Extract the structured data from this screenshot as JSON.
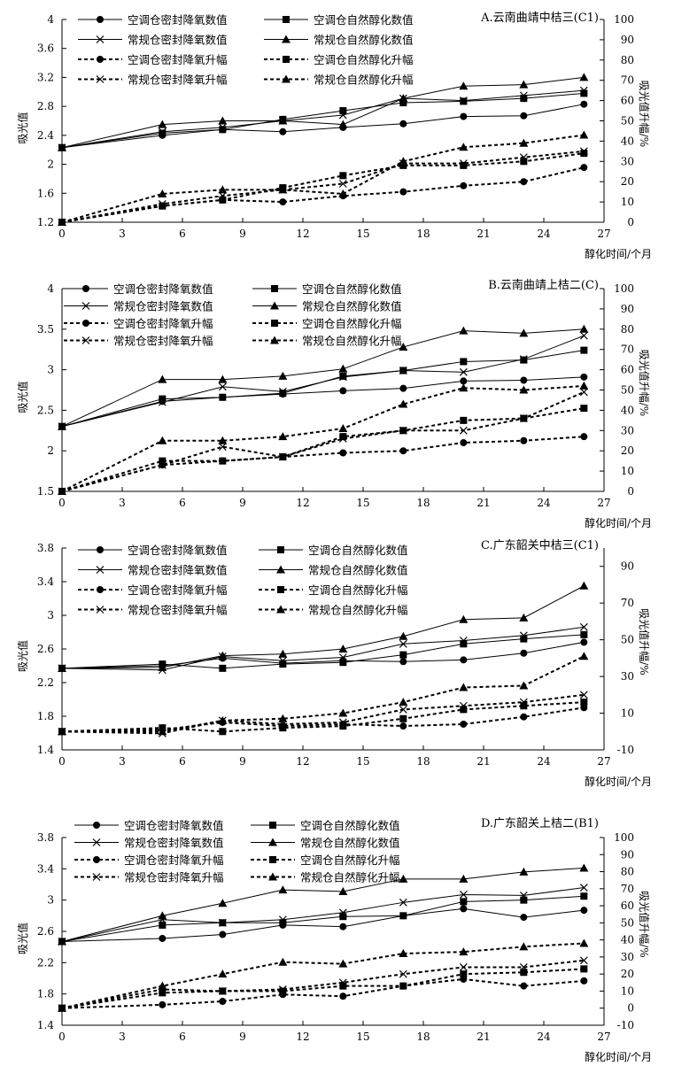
{
  "chart_data": [
    {
      "type": "line",
      "title": "A.云南曲靖中桔三(C1)",
      "xlabel": "醇化时间/个月",
      "ylabel": "吸光值",
      "y2label": "吸光值升幅/%",
      "x": [
        0,
        5,
        8,
        11,
        14,
        17,
        20,
        23,
        26
      ],
      "xticks": [
        0,
        3,
        6,
        9,
        12,
        15,
        18,
        21,
        24,
        27
      ],
      "xlim": [
        0,
        27
      ],
      "ylim": [
        1.2,
        4.0
      ],
      "yticks": [
        "1.2",
        "1.6",
        "2",
        "2.4",
        "2.8",
        "3.2",
        "3.6",
        "4"
      ],
      "y2lim": [
        0,
        100
      ],
      "y2ticks": [
        "0",
        "10",
        "20",
        "30",
        "40",
        "50",
        "60",
        "70",
        "80",
        "90",
        "100"
      ],
      "series": [
        {
          "name": "空调仓密封降氧数值",
          "axis": "left",
          "marker": "circle",
          "dashed": false,
          "values": [
            2.23,
            2.4,
            2.48,
            2.45,
            2.51,
            2.56,
            2.66,
            2.67,
            2.83
          ]
        },
        {
          "name": "空调仓自然醇化数值",
          "axis": "left",
          "marker": "square",
          "dashed": false,
          "values": [
            2.23,
            2.43,
            2.48,
            2.62,
            2.74,
            2.85,
            2.87,
            2.91,
            2.98
          ]
        },
        {
          "name": "常规仓密封降氧数值",
          "axis": "left",
          "marker": "x",
          "dashed": false,
          "values": [
            2.23,
            2.45,
            2.51,
            2.6,
            2.68,
            2.91,
            2.88,
            2.95,
            3.02
          ]
        },
        {
          "name": "常规仓自然醇化数值",
          "axis": "left",
          "marker": "triangle",
          "dashed": false,
          "values": [
            2.23,
            2.55,
            2.6,
            2.6,
            2.55,
            2.91,
            3.08,
            3.1,
            3.2
          ]
        },
        {
          "name": "空调仓密封降氧升幅",
          "axis": "right",
          "marker": "circle",
          "dashed": true,
          "values": [
            0,
            8,
            11,
            10,
            13,
            15,
            18,
            20,
            27
          ]
        },
        {
          "name": "空调仓自然醇化升幅",
          "axis": "right",
          "marker": "square",
          "dashed": true,
          "values": [
            0,
            8,
            11,
            17,
            23,
            28,
            28,
            30,
            34
          ]
        },
        {
          "name": "常规仓密封降氧升幅",
          "axis": "right",
          "marker": "x",
          "dashed": true,
          "values": [
            0,
            9,
            13,
            16,
            19,
            29,
            29,
            32,
            35
          ]
        },
        {
          "name": "常规仓自然醇化升幅",
          "axis": "right",
          "marker": "triangle",
          "dashed": true,
          "values": [
            0,
            14,
            16,
            16,
            14,
            30,
            37,
            39,
            43
          ]
        }
      ]
    },
    {
      "type": "line",
      "title": "B.云南曲靖上桔二(C)",
      "xlabel": "醇化时间/个月",
      "ylabel": "吸光值",
      "y2label": "吸光值升幅/%",
      "x": [
        0,
        5,
        8,
        11,
        14,
        17,
        20,
        23,
        26
      ],
      "xticks": [
        0,
        3,
        6,
        9,
        12,
        15,
        18,
        21,
        24,
        27
      ],
      "xlim": [
        0,
        27
      ],
      "ylim": [
        1.5,
        4.0
      ],
      "yticks": [
        "1.5",
        "2",
        "2.5",
        "3",
        "3.5",
        "4"
      ],
      "y2lim": [
        0,
        100
      ],
      "y2ticks": [
        "0",
        "10",
        "20",
        "30",
        "40",
        "50",
        "60",
        "70",
        "80",
        "90",
        "100"
      ],
      "series": [
        {
          "name": "空调仓密封降氧数值",
          "axis": "left",
          "marker": "circle",
          "dashed": false,
          "values": [
            2.3,
            2.61,
            2.66,
            2.7,
            2.74,
            2.77,
            2.86,
            2.87,
            2.91
          ]
        },
        {
          "name": "空调仓自然醇化数值",
          "axis": "left",
          "marker": "square",
          "dashed": false,
          "values": [
            2.3,
            2.64,
            2.66,
            2.71,
            2.92,
            2.99,
            3.1,
            3.12,
            3.24
          ]
        },
        {
          "name": "常规仓密封降氧数值",
          "axis": "left",
          "marker": "x",
          "dashed": false,
          "values": [
            2.3,
            2.6,
            2.79,
            2.73,
            2.91,
            2.99,
            2.97,
            3.13,
            3.42
          ]
        },
        {
          "name": "常规仓自然醇化数值",
          "axis": "left",
          "marker": "triangle",
          "dashed": false,
          "values": [
            2.3,
            2.88,
            2.88,
            2.92,
            3.01,
            3.28,
            3.48,
            3.45,
            3.5
          ]
        },
        {
          "name": "空调仓密封降氧升幅",
          "axis": "right",
          "marker": "circle",
          "dashed": true,
          "values": [
            0,
            13,
            15,
            17,
            19,
            20,
            24,
            25,
            27
          ]
        },
        {
          "name": "空调仓自然醇化升幅",
          "axis": "right",
          "marker": "square",
          "dashed": true,
          "values": [
            0,
            15,
            15,
            17,
            27,
            30,
            35,
            36,
            41
          ]
        },
        {
          "name": "常规仓密封降氧升幅",
          "axis": "right",
          "marker": "x",
          "dashed": true,
          "values": [
            0,
            13,
            22,
            17,
            26,
            30,
            30,
            36,
            49
          ]
        },
        {
          "name": "常规仓自然醇化升幅",
          "axis": "right",
          "marker": "triangle",
          "dashed": true,
          "values": [
            0,
            25,
            25,
            27,
            31,
            43,
            51,
            50,
            52
          ]
        }
      ]
    },
    {
      "type": "line",
      "title": "C.广东韶关中桔三(C1)",
      "xlabel": "醇化时间/个月",
      "ylabel": "吸光值",
      "y2label": "吸光值升幅/%",
      "x": [
        0,
        5,
        8,
        11,
        14,
        17,
        20,
        23,
        26
      ],
      "xticks": [
        0,
        3,
        6,
        9,
        12,
        15,
        18,
        21,
        24,
        27
      ],
      "xlim": [
        0,
        27
      ],
      "ylim": [
        1.4,
        3.8
      ],
      "yticks": [
        "1.4",
        "1.8",
        "2.2",
        "2.6",
        "3",
        "3.4",
        "3.8"
      ],
      "y2lim": [
        -10,
        100
      ],
      "y2ticks": [
        "-10",
        "10",
        "30",
        "50",
        "70",
        "90"
      ],
      "series": [
        {
          "name": "空调仓密封降氧数值",
          "axis": "left",
          "marker": "circle",
          "dashed": false,
          "values": [
            2.37,
            2.4,
            2.49,
            2.43,
            2.46,
            2.45,
            2.47,
            2.55,
            2.68
          ]
        },
        {
          "name": "空调仓自然醇化数值",
          "axis": "left",
          "marker": "square",
          "dashed": false,
          "values": [
            2.37,
            2.42,
            2.37,
            2.42,
            2.44,
            2.53,
            2.66,
            2.72,
            2.77
          ]
        },
        {
          "name": "常规仓密封降氧数值",
          "axis": "left",
          "marker": "x",
          "dashed": false,
          "values": [
            2.37,
            2.35,
            2.51,
            2.46,
            2.5,
            2.66,
            2.7,
            2.76,
            2.86
          ]
        },
        {
          "name": "常规仓自然醇化数值",
          "axis": "left",
          "marker": "triangle",
          "dashed": false,
          "values": [
            2.37,
            2.38,
            2.52,
            2.54,
            2.6,
            2.75,
            2.95,
            2.97,
            3.35
          ]
        },
        {
          "name": "空调仓密封降氧升幅",
          "axis": "right",
          "marker": "circle",
          "dashed": true,
          "values": [
            0,
            1,
            5,
            3,
            4,
            3,
            4,
            8,
            13
          ]
        },
        {
          "name": "空调仓自然醇化升幅",
          "axis": "right",
          "marker": "square",
          "dashed": true,
          "values": [
            0,
            2,
            0,
            2,
            3,
            7,
            12,
            14,
            16
          ]
        },
        {
          "name": "常规仓密封降氧升幅",
          "axis": "right",
          "marker": "x",
          "dashed": true,
          "values": [
            0,
            -1,
            6,
            4,
            5,
            12,
            14,
            16,
            20
          ]
        },
        {
          "name": "常规仓自然醇化升幅",
          "axis": "right",
          "marker": "triangle",
          "dashed": true,
          "values": [
            0,
            0,
            6,
            7,
            10,
            16,
            24,
            25,
            41
          ]
        }
      ]
    },
    {
      "type": "line",
      "title": "D.广东韶关上桔二(B1)",
      "xlabel": "醇化时间/个月",
      "ylabel": "吸光值",
      "y2label": "吸光值升幅/%",
      "x": [
        0,
        5,
        8,
        11,
        14,
        17,
        20,
        23,
        26
      ],
      "xticks": [
        0,
        3,
        6,
        9,
        12,
        15,
        18,
        21,
        24,
        27
      ],
      "xlim": [
        0,
        27
      ],
      "ylim": [
        1.4,
        3.8
      ],
      "yticks": [
        "1.4",
        "1.8",
        "2.2",
        "2.6",
        "3",
        "3.4",
        "3.8"
      ],
      "y2lim": [
        -10,
        100
      ],
      "y2ticks": [
        "-10",
        "0",
        "10",
        "20",
        "30",
        "40",
        "50",
        "60",
        "70",
        "80",
        "90",
        "100"
      ],
      "series": [
        {
          "name": "空调仓密封降氧数值",
          "axis": "left",
          "marker": "circle",
          "dashed": false,
          "values": [
            2.47,
            2.51,
            2.56,
            2.68,
            2.66,
            2.8,
            2.89,
            2.78,
            2.87
          ]
        },
        {
          "name": "空调仓自然醇化数值",
          "axis": "left",
          "marker": "square",
          "dashed": false,
          "values": [
            2.47,
            2.68,
            2.71,
            2.71,
            2.79,
            2.8,
            2.98,
            3.0,
            3.05
          ]
        },
        {
          "name": "常规仓密封降氧数值",
          "axis": "left",
          "marker": "x",
          "dashed": false,
          "values": [
            2.47,
            2.75,
            2.71,
            2.75,
            2.84,
            2.97,
            3.07,
            3.06,
            3.16
          ]
        },
        {
          "name": "常规仓自然醇化数值",
          "axis": "left",
          "marker": "triangle",
          "dashed": false,
          "values": [
            2.47,
            2.8,
            2.96,
            3.13,
            3.11,
            3.27,
            3.27,
            3.36,
            3.41
          ]
        },
        {
          "name": "空调仓密封降氧升幅",
          "axis": "right",
          "marker": "circle",
          "dashed": true,
          "values": [
            0,
            2,
            4,
            8,
            7,
            13,
            17,
            13,
            16
          ]
        },
        {
          "name": "空调仓自然醇化升幅",
          "axis": "right",
          "marker": "square",
          "dashed": true,
          "values": [
            0,
            9,
            10,
            10,
            13,
            13,
            20,
            21,
            23
          ]
        },
        {
          "name": "常规仓密封降氧升幅",
          "axis": "right",
          "marker": "x",
          "dashed": true,
          "values": [
            0,
            11,
            10,
            11,
            15,
            20,
            24,
            24,
            28
          ]
        },
        {
          "name": "常规仓自然醇化升幅",
          "axis": "right",
          "marker": "triangle",
          "dashed": true,
          "values": [
            0,
            13,
            20,
            27,
            26,
            32,
            33,
            36,
            38
          ]
        }
      ]
    }
  ]
}
